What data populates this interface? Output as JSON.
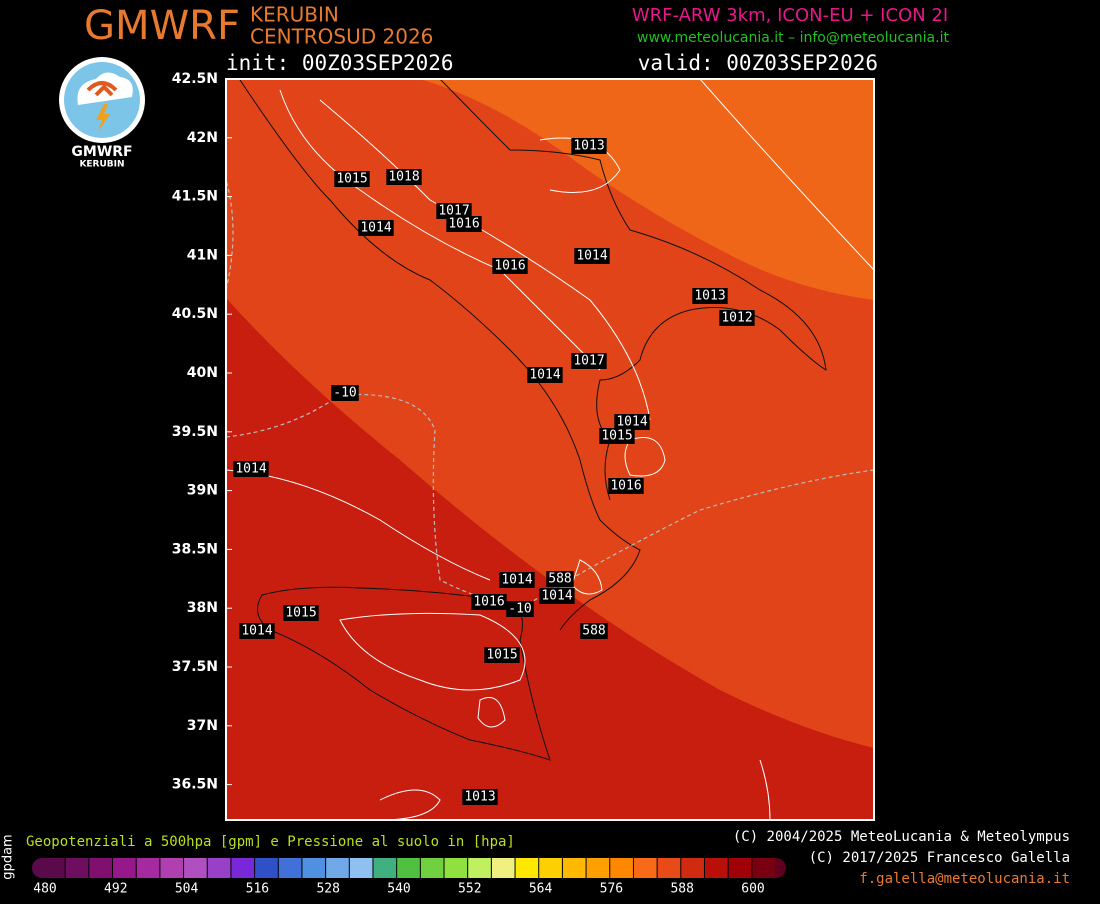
{
  "header": {
    "brand": "GMWRF",
    "model_name": "KERUBIN",
    "domain": "CENTROSUD 2026",
    "models": "WRF-ARW 3km, ICON-EU + ICON 2I",
    "links": "www.meteolucania.it – info@meteolucania.it",
    "init": "init: 00Z03SEP2026",
    "valid": "valid: 00Z03SEP2026"
  },
  "logo": {
    "brand": "GMWRF",
    "name": "KERUBIN"
  },
  "map": {
    "lat_labels": [
      "42.5N",
      "42N",
      "41.5N",
      "41N",
      "40.5N",
      "40N",
      "39.5N",
      "39N",
      "38.5N",
      "38N",
      "37.5N",
      "37N",
      "36.5N"
    ],
    "contour_labels": [
      "1013",
      "1015",
      "1018",
      "1017",
      "1016",
      "1014",
      "1016",
      "1014",
      "1013",
      "1012",
      "1017",
      "1014",
      "-10",
      "1014",
      "1015",
      "1014",
      "1016",
      "1014",
      "588",
      "1014",
      "1016",
      "-10",
      "1015",
      "1014",
      "1015",
      "588",
      "1013"
    ]
  },
  "footer": {
    "unit": "gpdam",
    "legend_title": "Geopotenziali a 500hpa [gpm] e Pressione al suolo in [hpa]",
    "colorbar_ticks": [
      480,
      492,
      504,
      516,
      528,
      540,
      552,
      564,
      576,
      588,
      600
    ],
    "credits": [
      "(C) 2004/2025 MeteoLucania & Meteolympus",
      "(C) 2017/2025 Francesco Galella",
      "f.galella@meteolucania.it"
    ]
  }
}
